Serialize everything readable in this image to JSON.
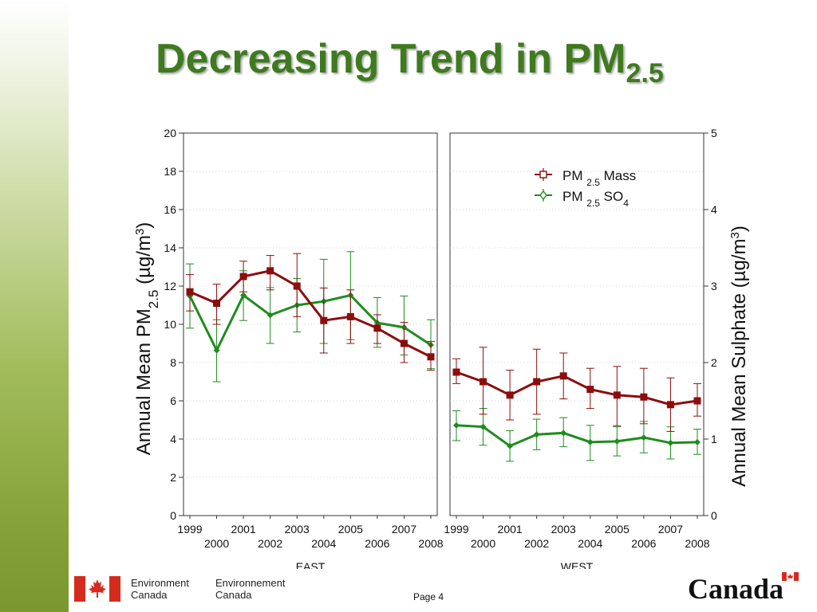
{
  "slide": {
    "title_main": "Decreasing Trend in PM",
    "title_sub": "2.5",
    "page_label": "Page 4"
  },
  "footer": {
    "dept_en_line1": "Environment",
    "dept_en_line2": "Canada",
    "dept_fr_line1": "Environnement",
    "dept_fr_line2": "Canada",
    "wordmark": "Canada"
  },
  "colors": {
    "title": "#3f7a1f",
    "mass_series": "#8b0d0d",
    "so4_series": "#1e8c1e",
    "flag_red": "#d52b1e"
  },
  "chart_data": {
    "type": "line",
    "y_left_label": {
      "prefix": "Annual Mean PM",
      "sub": "2.5",
      "unit": " (µg/m",
      "sup": "3",
      "close": ")"
    },
    "y_right_label": {
      "text": "Annual Mean Sulphate (µg/m",
      "sup": "3",
      "close": ")"
    },
    "y_left_lim": [
      0,
      20
    ],
    "y_left_ticks": [
      "0",
      "2",
      "4",
      "6",
      "8",
      "10",
      "12",
      "14",
      "16",
      "18",
      "20"
    ],
    "y_right_lim": [
      0,
      5
    ],
    "y_right_ticks": [
      "0",
      "1",
      "2",
      "3",
      "4",
      "5"
    ],
    "x": [
      1999,
      2000,
      2001,
      2002,
      2003,
      2004,
      2005,
      2006,
      2007,
      2008
    ],
    "x_tick_labels_top": [
      "1999",
      "2001",
      "2003",
      "2005",
      "2007"
    ],
    "x_tick_labels_bottom": [
      "2000",
      "2002",
      "2004",
      "2006",
      "2008"
    ],
    "legend": {
      "position": "top-right of WEST panel",
      "mass": {
        "pre": "PM ",
        "sub": "2.5",
        "post": " Mass"
      },
      "so4": {
        "pre": "PM ",
        "sub": "2.5",
        "post": " SO",
        "post_sub": "4"
      }
    },
    "panels": [
      {
        "name": "EAST",
        "series": [
          {
            "key": "mass",
            "axis": "left",
            "values": [
              11.7,
              11.1,
              12.5,
              12.8,
              12.0,
              10.2,
              10.4,
              9.8,
              9.0,
              8.3
            ],
            "err_low": [
              10.7,
              10.0,
              11.7,
              11.8,
              10.4,
              8.5,
              9.0,
              9.0,
              8.0,
              7.6
            ],
            "err_high": [
              12.6,
              12.1,
              13.3,
              13.6,
              13.7,
              11.9,
              11.8,
              10.5,
              10.1,
              9.1
            ]
          },
          {
            "key": "so4",
            "axis": "right",
            "values": [
              2.87,
              2.16,
              2.88,
              2.62,
              2.75,
              2.8,
              2.88,
              2.52,
              2.46,
              2.23
            ],
            "err_low": [
              2.45,
              1.75,
              2.55,
              2.25,
              2.4,
              2.25,
              2.3,
              2.2,
              2.1,
              1.92
            ],
            "err_high": [
              3.29,
              2.56,
              3.2,
              2.98,
              3.1,
              3.35,
              3.45,
              2.85,
              2.87,
              2.56
            ]
          }
        ]
      },
      {
        "name": "WEST",
        "series": [
          {
            "key": "mass",
            "axis": "left",
            "values": [
              7.5,
              7.0,
              6.3,
              7.0,
              7.3,
              6.6,
              6.3,
              6.2,
              5.8,
              6.0
            ],
            "err_low": [
              6.9,
              5.3,
              5.0,
              5.3,
              6.1,
              5.6,
              4.7,
              4.8,
              4.4,
              5.2
            ],
            "err_high": [
              8.2,
              8.8,
              7.6,
              8.7,
              8.5,
              7.7,
              7.8,
              7.7,
              7.2,
              6.9
            ]
          },
          {
            "key": "so4",
            "axis": "right",
            "values": [
              1.18,
              1.16,
              0.91,
              1.06,
              1.08,
              0.96,
              0.97,
              1.02,
              0.95,
              0.96
            ],
            "err_low": [
              0.98,
              0.92,
              0.71,
              0.86,
              0.9,
              0.72,
              0.78,
              0.82,
              0.74,
              0.8
            ],
            "err_high": [
              1.37,
              1.4,
              1.11,
              1.26,
              1.28,
              1.18,
              1.16,
              1.23,
              1.16,
              1.13
            ]
          }
        ]
      }
    ]
  }
}
